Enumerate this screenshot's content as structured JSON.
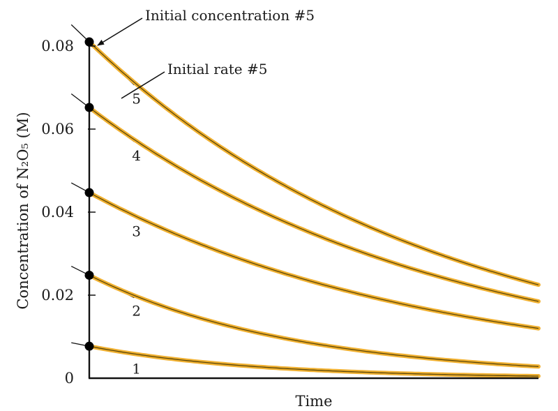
{
  "chart_data": {
    "type": "line",
    "title": "",
    "xlabel": "Time",
    "ylabel": "Concentration of N₂O₅ (M)",
    "ylim": [
      0,
      0.08
    ],
    "y_ticks": [
      {
        "value": 0,
        "label": "0"
      },
      {
        "value": 0.02,
        "label": "0.02"
      },
      {
        "value": 0.04,
        "label": "0.04"
      },
      {
        "value": 0.06,
        "label": "0.06"
      },
      {
        "value": 0.08,
        "label": "0.08"
      }
    ],
    "x_ticks": [],
    "grid": false,
    "legend": "none",
    "x": [
      0,
      1
    ],
    "series": [
      {
        "label": "1",
        "values": [
          0.0077,
          0.0005
        ]
      },
      {
        "label": "2",
        "values": [
          0.0248,
          0.0028
        ]
      },
      {
        "label": "3",
        "values": [
          0.0447,
          0.012
        ]
      },
      {
        "label": "4",
        "values": [
          0.0652,
          0.0185
        ]
      },
      {
        "label": "5",
        "values": [
          0.081,
          0.0225
        ]
      }
    ],
    "annotations": [
      {
        "text": "Initial concentration #5",
        "target_series": "5"
      },
      {
        "text": "Initial rate #5",
        "target_series": "5"
      }
    ],
    "colors": {
      "curve": "#f0b030",
      "curve_core": "#5a4608",
      "point": "#000000",
      "axis": "#111111"
    }
  }
}
